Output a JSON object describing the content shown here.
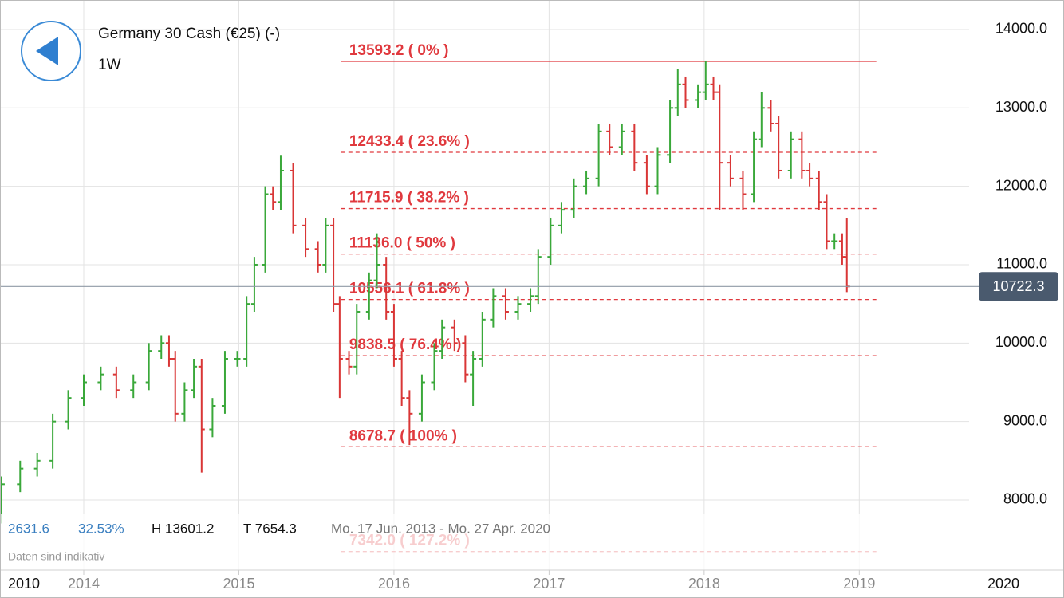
{
  "chart_data": {
    "type": "ohlc",
    "title": "Germany 30 Cash (€25) (-)",
    "interval": "1W",
    "xlim": [
      2013.46,
      2020.32
    ],
    "xticks": [
      2014,
      2015,
      2016,
      2017,
      2018,
      2019
    ],
    "range_start_label": "2010",
    "range_end_label": "2020",
    "ylim": [
      7105,
      14376
    ],
    "yticks": [
      {
        "value": 8000,
        "label": "8000.0"
      },
      {
        "value": 9000,
        "label": "9000.0"
      },
      {
        "value": 10000,
        "label": "10000.0"
      },
      {
        "value": 11000,
        "label": "11000.0"
      },
      {
        "value": 12000,
        "label": "12000.0"
      },
      {
        "value": 13000,
        "label": "13000.0"
      },
      {
        "value": 14000,
        "label": "14000.0"
      }
    ],
    "grid": true,
    "up_color": "#3aa83a",
    "down_color": "#d93636",
    "x": [
      2013.47,
      2013.59,
      2013.7,
      2013.8,
      2013.9,
      2014.0,
      2014.11,
      2014.21,
      2014.32,
      2014.42,
      2014.5,
      2014.55,
      2014.59,
      2014.65,
      2014.71,
      2014.76,
      2014.83,
      2014.91,
      2014.99,
      2015.05,
      2015.1,
      2015.17,
      2015.22,
      2015.27,
      2015.35,
      2015.43,
      2015.51,
      2015.56,
      2015.61,
      2015.65,
      2015.71,
      2015.76,
      2015.84,
      2015.89,
      2015.95,
      2016.0,
      2016.05,
      2016.1,
      2016.18,
      2016.26,
      2016.31,
      2016.39,
      2016.46,
      2016.51,
      2016.57,
      2016.64,
      2016.72,
      2016.8,
      2016.88,
      2016.93,
      2017.01,
      2017.08,
      2017.16,
      2017.24,
      2017.32,
      2017.39,
      2017.47,
      2017.55,
      2017.63,
      2017.7,
      2017.78,
      2017.83,
      2017.88,
      2017.96,
      2018.01,
      2018.06,
      2018.1,
      2018.17,
      2018.25,
      2018.32,
      2018.37,
      2018.43,
      2018.48,
      2018.56,
      2018.63,
      2018.68,
      2018.74,
      2018.79,
      2018.84,
      2018.89,
      2018.92
    ],
    "open": [
      8000,
      8200,
      8400,
      8500,
      9000,
      9300,
      9500,
      9600,
      9400,
      9500,
      9900,
      10000,
      9800,
      9100,
      9400,
      9700,
      8900,
      9200,
      9800,
      9800,
      10500,
      11000,
      11900,
      11800,
      12200,
      11500,
      11200,
      11000,
      11500,
      10500,
      9800,
      9700,
      10400,
      10800,
      11000,
      10400,
      9800,
      9300,
      9100,
      9500,
      9900,
      10200,
      10000,
      9600,
      9800,
      10300,
      10600,
      10400,
      10500,
      10600,
      11100,
      11500,
      11700,
      12000,
      12100,
      12700,
      12500,
      12700,
      12300,
      12000,
      12400,
      13000,
      13300,
      13100,
      13200,
      13300,
      13200,
      12300,
      12100,
      11900,
      12600,
      13000,
      12800,
      12200,
      12600,
      12200,
      12100,
      11800,
      11300,
      11300,
      11100
    ],
    "high": [
      8300,
      8500,
      8600,
      9100,
      9400,
      9600,
      9700,
      9700,
      9600,
      10000,
      10100,
      10100,
      9900,
      9500,
      9800,
      9800,
      9300,
      9900,
      9900,
      10600,
      11100,
      12000,
      12000,
      12390,
      12300,
      11600,
      11300,
      11600,
      11600,
      10600,
      9900,
      10500,
      10900,
      11400,
      11100,
      10500,
      9900,
      9400,
      9600,
      10000,
      10300,
      10300,
      10100,
      9900,
      10400,
      10700,
      10700,
      10600,
      10700,
      11200,
      11600,
      11800,
      12100,
      12200,
      12800,
      12800,
      12800,
      12800,
      12400,
      12500,
      13100,
      13500,
      13400,
      13300,
      13600,
      13400,
      13300,
      12400,
      12200,
      12700,
      13200,
      13100,
      12900,
      12700,
      12700,
      12300,
      12200,
      11900,
      11400,
      11400,
      11600
    ],
    "low": [
      7700,
      8100,
      8300,
      8400,
      8900,
      9200,
      9400,
      9300,
      9300,
      9400,
      9800,
      9700,
      9000,
      9000,
      9300,
      8350,
      8800,
      9100,
      9700,
      9700,
      10400,
      10900,
      11700,
      11700,
      11400,
      11100,
      10900,
      10900,
      10400,
      9300,
      9600,
      9600,
      10300,
      10700,
      10300,
      9700,
      9200,
      8700,
      9000,
      9400,
      9800,
      9900,
      9500,
      9200,
      9700,
      10200,
      10300,
      10300,
      10400,
      10500,
      11000,
      11400,
      11600,
      11900,
      12000,
      12400,
      12400,
      12200,
      11900,
      11900,
      12300,
      12900,
      13000,
      13000,
      13100,
      13100,
      11700,
      12000,
      11700,
      11800,
      12500,
      12700,
      12100,
      12100,
      12100,
      12000,
      11700,
      11200,
      11200,
      11000,
      10650
    ],
    "close": [
      8200,
      8400,
      8500,
      9000,
      9300,
      9500,
      9600,
      9400,
      9500,
      9900,
      10000,
      9800,
      9100,
      9400,
      9700,
      8900,
      9200,
      9800,
      9800,
      10500,
      11000,
      11900,
      11800,
      12200,
      11500,
      11200,
      11000,
      11500,
      10500,
      9800,
      9700,
      10400,
      10800,
      11000,
      10400,
      9800,
      9300,
      9100,
      9500,
      9900,
      10200,
      10000,
      9600,
      9800,
      10300,
      10600,
      10400,
      10500,
      10600,
      11100,
      11500,
      11700,
      12000,
      12100,
      12700,
      12500,
      12700,
      12300,
      12000,
      12400,
      13000,
      13300,
      13100,
      13200,
      13300,
      13200,
      12300,
      12100,
      11900,
      12600,
      13000,
      12800,
      12200,
      12600,
      12200,
      12100,
      11800,
      11300,
      11300,
      11100,
      10722.3
    ],
    "current_price": 10722.3,
    "fib_color": "#e0393e",
    "fib_range": [
      2015.66,
      2019.11
    ],
    "fib_levels": [
      {
        "value": 13593.2,
        "label": "13593.2 ( 0% )"
      },
      {
        "value": 12433.4,
        "label": "12433.4 ( 23.6% )"
      },
      {
        "value": 11715.9,
        "label": "11715.9 ( 38.2% )"
      },
      {
        "value": 11136.0,
        "label": "11136.0 ( 50% )"
      },
      {
        "value": 10556.1,
        "label": "10556.1 ( 61.8% )"
      },
      {
        "value": 9838.5,
        "label": "9838.5 ( 76.4% )"
      },
      {
        "value": 8678.7,
        "label": "8678.7 ( 100% )"
      },
      {
        "value": 7342.0,
        "label": "7342.0 ( 127.2% )"
      }
    ],
    "stats": {
      "change": "2631.6",
      "change_pct": "32.53%",
      "high": "H 13601.2",
      "low": "T 7654.3",
      "range": "Mo. 17 Jun. 2013 - Mo. 27 Apr. 2020"
    },
    "note": "Daten sind indikativ"
  }
}
